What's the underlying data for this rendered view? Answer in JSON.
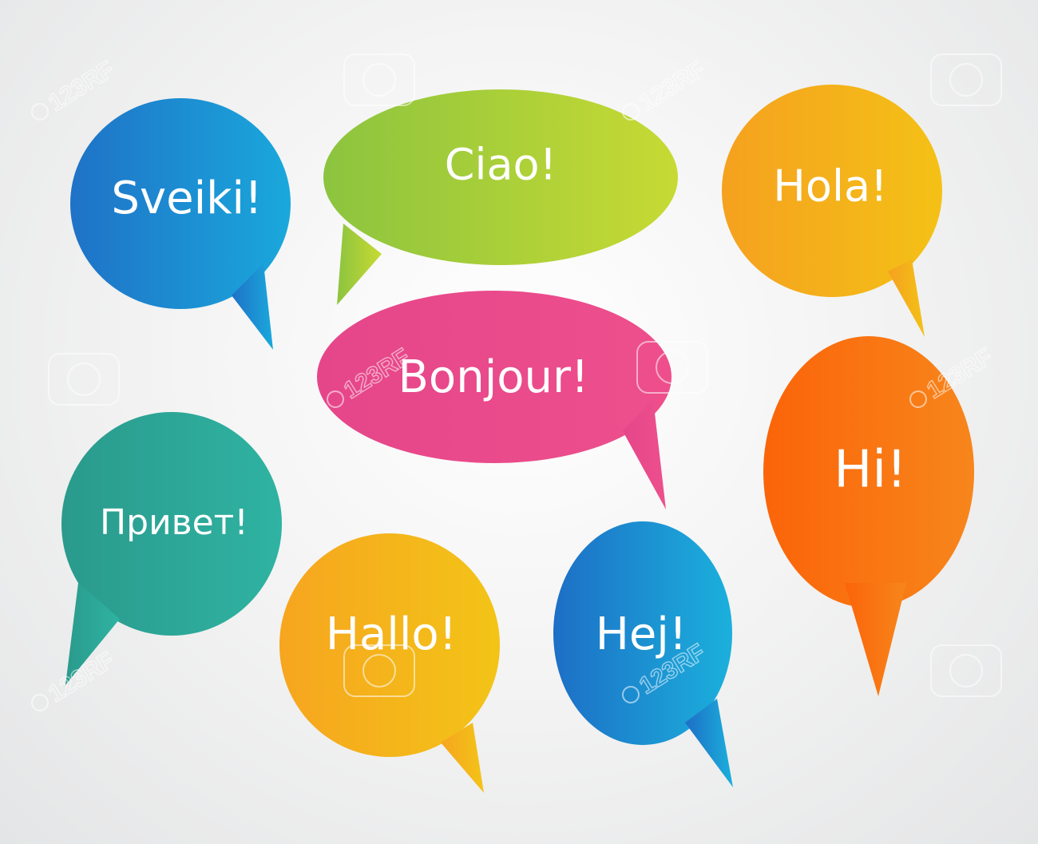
{
  "bubbles": [
    {
      "id": "sveiki",
      "text": "Sveiki!",
      "color_start": "#1f72c7",
      "color_end": "#1aa8dc"
    },
    {
      "id": "ciao",
      "text": "Ciao!",
      "color_start": "#8cc43f",
      "color_end": "#c7da33"
    },
    {
      "id": "hola",
      "text": "Hola!",
      "color_start": "#f5a11f",
      "color_end": "#f4c116"
    },
    {
      "id": "bonjour",
      "text": "Bonjour!",
      "color_start": "#e5468a",
      "color_end": "#ee4f8c"
    },
    {
      "id": "privet",
      "text": "Привет!",
      "color_start": "#2a9a8c",
      "color_end": "#2fb3a2"
    },
    {
      "id": "hallo",
      "text": "Hallo!",
      "color_start": "#f6a51f",
      "color_end": "#f3c417"
    },
    {
      "id": "hej",
      "text": "Hej!",
      "color_start": "#1d6fc6",
      "color_end": "#1bb0dc"
    },
    {
      "id": "hi",
      "text": "Hi!",
      "color_start": "#fb6409",
      "color_end": "#f7861c"
    }
  ],
  "watermark": {
    "text": "123RF",
    "icon": "camera-lens-icon"
  }
}
